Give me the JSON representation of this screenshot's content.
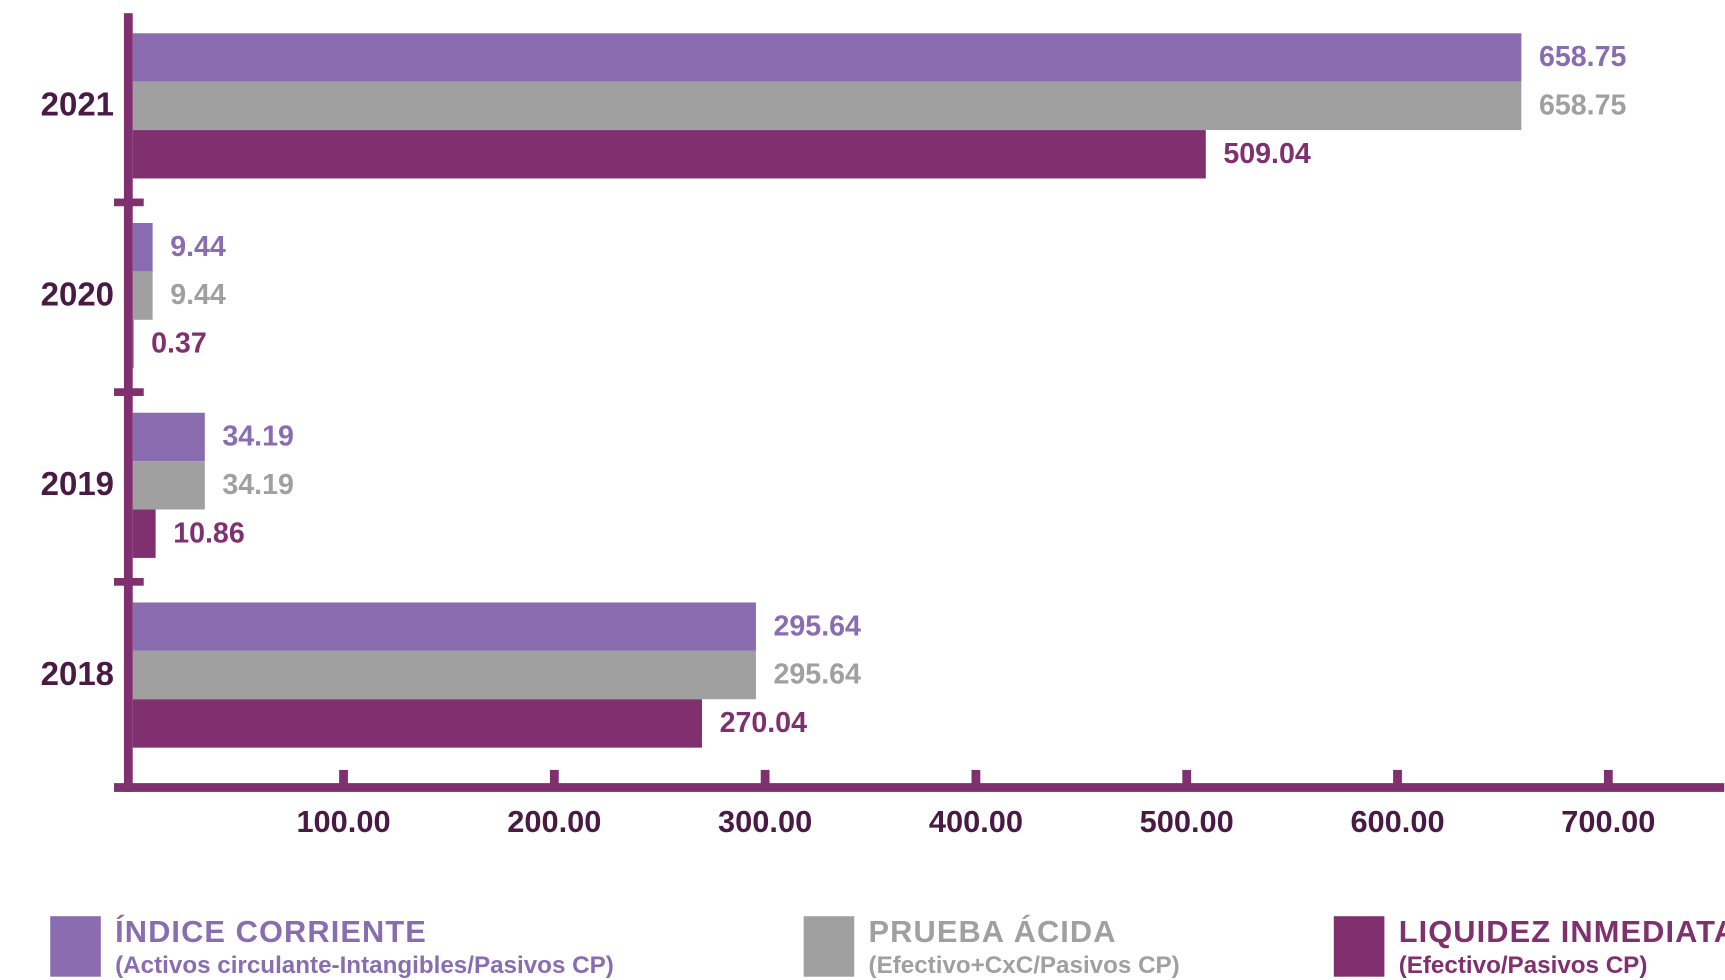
{
  "chart_data": {
    "type": "bar",
    "orientation": "horizontal",
    "categories": [
      "2021",
      "2020",
      "2019",
      "2018"
    ],
    "series": [
      {
        "name": "ÍNDICE CORRIENTE",
        "description": "(Activos circulante-Intangibles/Pasivos CP)",
        "color": "#8a6db1",
        "values": [
          658.75,
          9.44,
          34.19,
          295.64
        ]
      },
      {
        "name": "PRUEBA ÁCIDA",
        "description": "(Efectivo+CxC/Pasivos CP)",
        "color": "#a0a0a0",
        "values": [
          658.75,
          9.44,
          34.19,
          295.64
        ]
      },
      {
        "name": "LIQUIDEZ INMEDIATA",
        "description": "(Efectivo/Pasivos CP)",
        "color": "#80306f",
        "values": [
          509.04,
          0.37,
          10.86,
          270.04
        ]
      }
    ],
    "xlim": [
      0,
      755
    ],
    "xticks": [
      {
        "value": 100,
        "label": "100.00"
      },
      {
        "value": 200,
        "label": "200.00"
      },
      {
        "value": 300,
        "label": "300.00"
      },
      {
        "value": 400,
        "label": "400.00"
      },
      {
        "value": 500,
        "label": "500.00"
      },
      {
        "value": 600,
        "label": "600.00"
      },
      {
        "value": 700,
        "label": "700.00"
      }
    ],
    "axis_color": "#80306f",
    "legend": "bottom"
  }
}
